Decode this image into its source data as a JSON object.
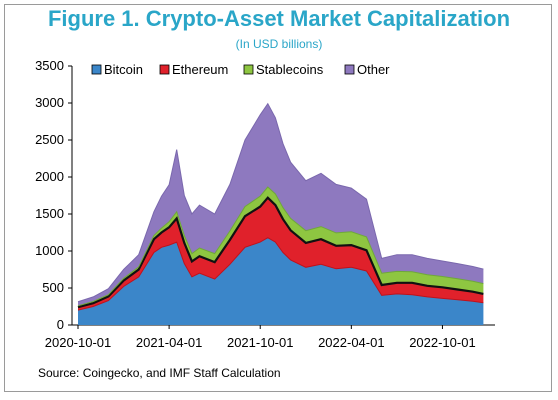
{
  "title": "Figure 1. Crypto-Asset Market Capitalization",
  "subtitle": "(In USD billions)",
  "source": "Source: Coingecko, and IMF Staff Calculation",
  "colors": {
    "bitcoin": "#3b86c9",
    "ethereum": "#e0212b",
    "stablecoins": "#8ec641",
    "other": "#8e79bf",
    "band_black": "#000000"
  },
  "chart_data": {
    "type": "area",
    "stacked": true,
    "title": "Figure 1. Crypto-Asset Market Capitalization",
    "subtitle": "(In USD billions)",
    "xlabel": "",
    "ylabel": "",
    "ylim": [
      0,
      3500
    ],
    "yticks": [
      0,
      500,
      1000,
      1500,
      2000,
      2500,
      3000,
      3500
    ],
    "xtick_labels": [
      "2020-10-01",
      "2021-04-01",
      "2021-10-01",
      "2022-04-01",
      "2022-10-01"
    ],
    "xtick_months": [
      0,
      6,
      12,
      18,
      24
    ],
    "x_range_months": [
      0,
      27
    ],
    "grid": false,
    "legend_position": "top-left",
    "legend": [
      "Bitcoin",
      "Ethereum",
      "Stablecoins",
      "Other"
    ],
    "x_months": [
      0,
      1,
      2,
      3,
      4,
      5,
      5.5,
      6,
      6.5,
      7,
      7.5,
      8,
      9,
      10,
      11,
      12,
      12.5,
      13,
      13.5,
      14,
      15,
      16,
      17,
      18,
      19,
      20,
      21,
      22,
      23,
      24,
      25,
      26,
      26.7
    ],
    "series": [
      {
        "name": "Bitcoin",
        "values": [
          200,
          250,
          330,
          520,
          650,
          980,
          1050,
          1080,
          1120,
          830,
          650,
          700,
          620,
          820,
          1050,
          1120,
          1180,
          1120,
          980,
          880,
          780,
          820,
          760,
          780,
          730,
          400,
          420,
          410,
          380,
          360,
          340,
          320,
          300
        ]
      },
      {
        "name": "Ethereum",
        "values": [
          40,
          45,
          55,
          80,
          100,
          180,
          200,
          240,
          320,
          280,
          210,
          230,
          230,
          330,
          420,
          480,
          540,
          500,
          450,
          400,
          330,
          340,
          310,
          300,
          280,
          140,
          150,
          160,
          150,
          150,
          140,
          130,
          120
        ]
      },
      {
        "name": "Stablecoins",
        "values": [
          20,
          22,
          25,
          30,
          35,
          50,
          60,
          75,
          90,
          100,
          105,
          110,
          115,
          120,
          130,
          140,
          145,
          150,
          155,
          160,
          165,
          170,
          175,
          180,
          180,
          160,
          155,
          150,
          150,
          145,
          145,
          140,
          140
        ]
      },
      {
        "name": "Other",
        "values": [
          55,
          63,
          80,
          120,
          165,
          320,
          430,
          500,
          840,
          540,
          535,
          580,
          535,
          630,
          900,
          1100,
          1125,
          1030,
          865,
          760,
          675,
          720,
          655,
          590,
          510,
          200,
          225,
          230,
          220,
          210,
          205,
          200,
          195
        ]
      }
    ]
  }
}
